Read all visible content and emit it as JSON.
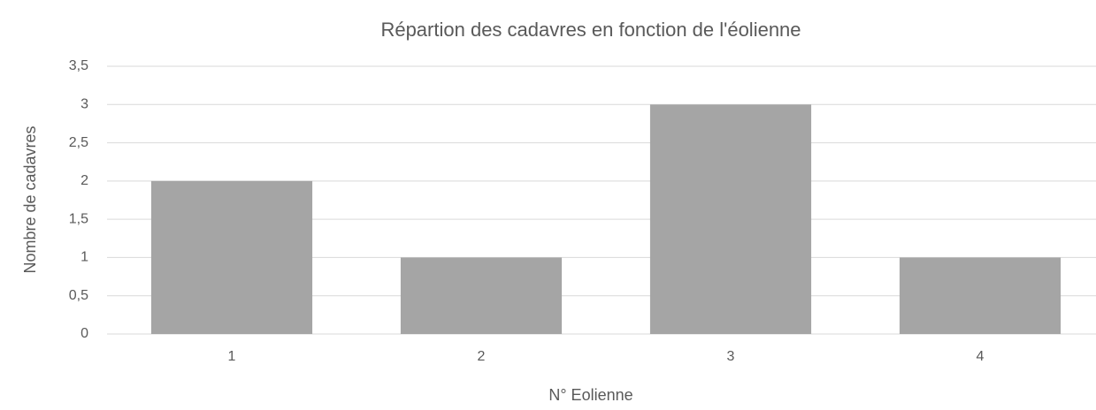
{
  "chart_data": {
    "type": "bar",
    "title": "Répartion des cadavres en fonction de l'éolienne",
    "x_label": "N° Eolienne",
    "y_label": "Nombre de cadavres",
    "categories": [
      "1",
      "2",
      "3",
      "4"
    ],
    "values": [
      2,
      1,
      3,
      1
    ],
    "color": "#a5a5a5",
    "ylim": [
      0,
      3.5
    ],
    "yticks": [
      0,
      {
        "value": 0.5,
        "label": "0,5"
      },
      1,
      {
        "value": 1.5,
        "label": "1,5"
      },
      2,
      {
        "value": 2.5,
        "label": "2,5"
      },
      3,
      {
        "value": 3.5,
        "label": "3,5"
      }
    ],
    "grid": true
  }
}
